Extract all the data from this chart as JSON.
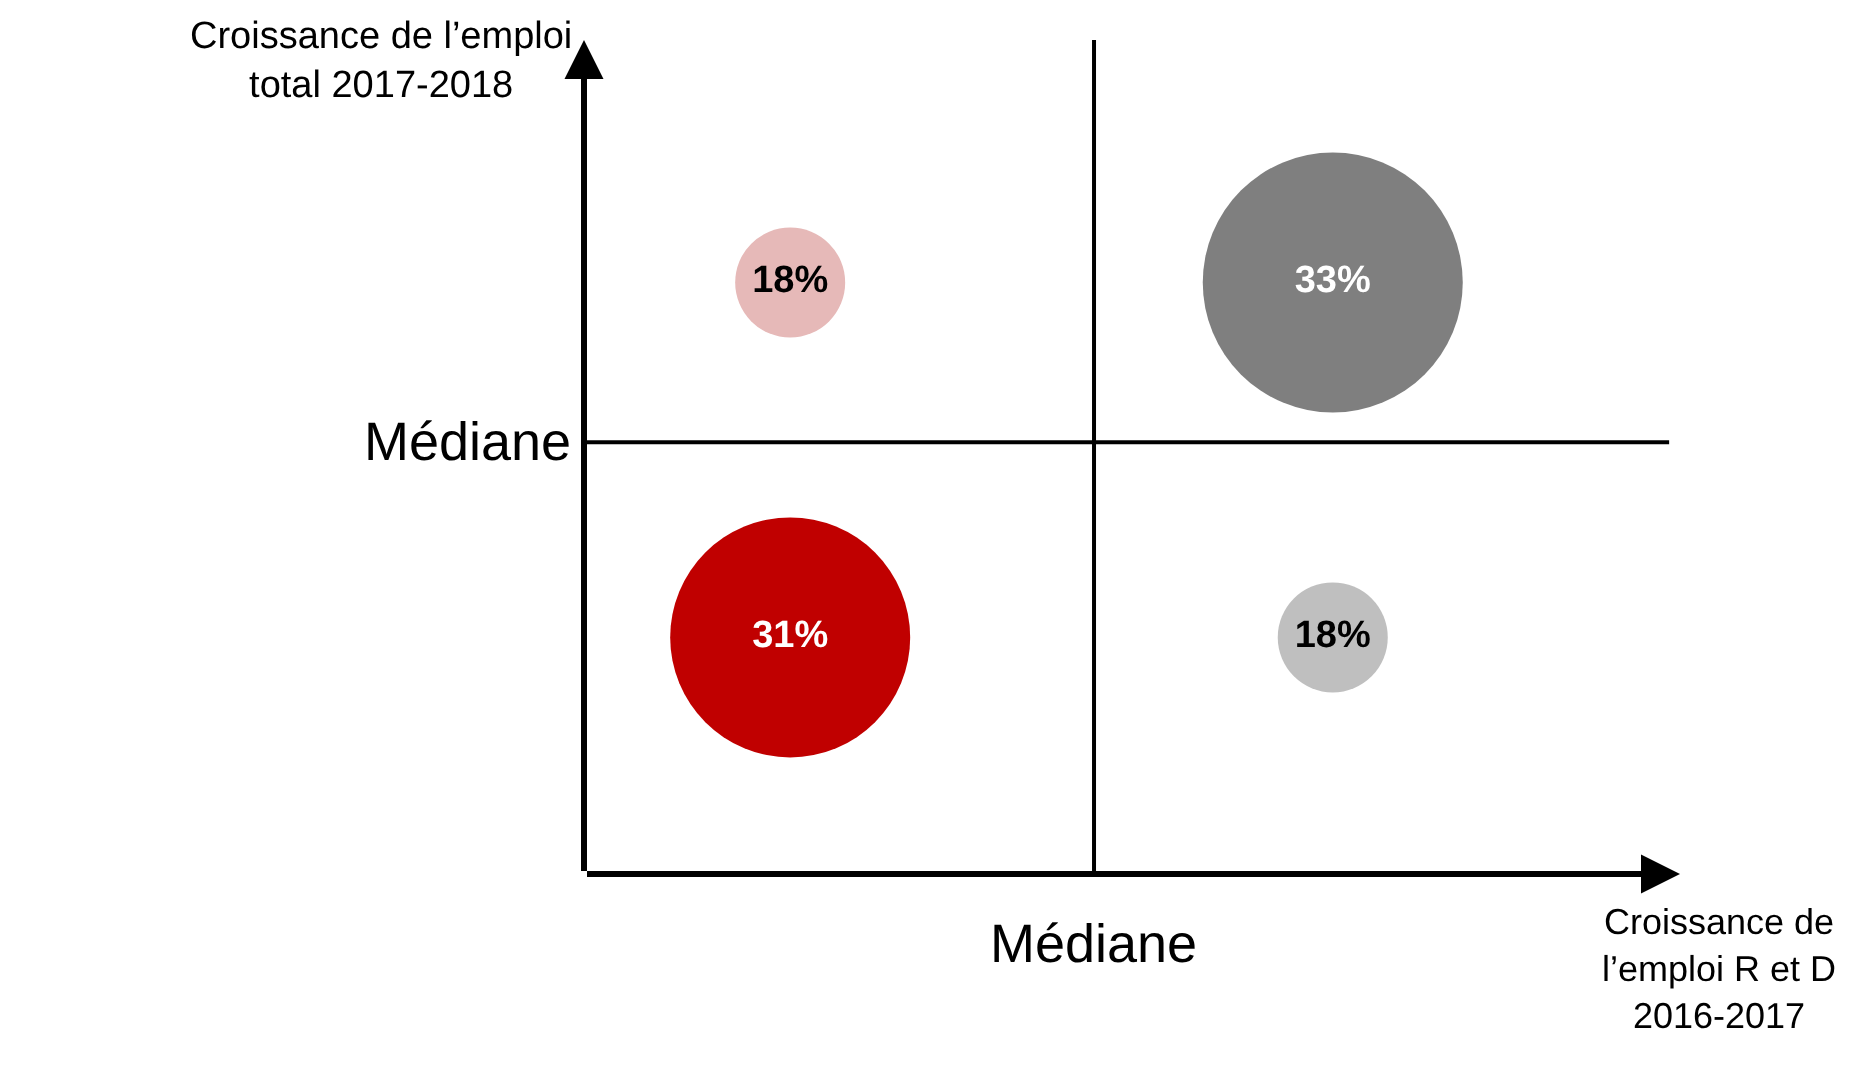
{
  "chart_data": {
    "type": "other",
    "xlabel": "Croissance de l’emploi R et D 2016-2017",
    "ylabel": "Croissance de l’emploi total 2017-2018",
    "categories": [
      null,
      null,
      null,
      null
    ],
    "values": [
      18,
      33,
      31,
      18
    ],
    "value_labels": [
      "18%",
      "33%",
      "31%",
      "18%"
    ],
    "colors": [
      "#e6b9b8",
      "#7f7f7f",
      "#c00000",
      "#bfbfbf"
    ],
    "annotations": [
      "Médiane",
      "Médiane"
    ]
  }
}
